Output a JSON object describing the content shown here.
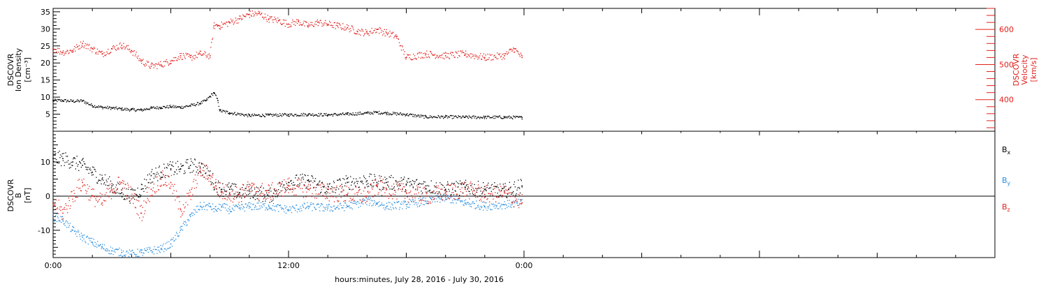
{
  "chart_data": [
    {
      "type": "scatter",
      "panel": "top",
      "title": "",
      "ylabel": [
        "DSCOVR",
        "Ion Density",
        "[cm⁻³]"
      ],
      "y2label": [
        "DSCOVR",
        "Velocity",
        "[km/s]"
      ],
      "xlim_hours": [
        0,
        48
      ],
      "ylim": [
        0,
        36
      ],
      "y2lim": [
        310,
        660
      ],
      "yticks": [
        5,
        10,
        15,
        20,
        25,
        30,
        35
      ],
      "y2ticks": [
        400,
        500,
        600
      ],
      "y2_color": "#e0201c",
      "series": [
        {
          "axis": "left",
          "color": "#000000",
          "x": [
            0.0,
            0.5,
            1.0,
            1.5,
            2.0,
            2.5,
            3.0,
            3.5,
            4.0,
            4.5,
            5.0,
            5.5,
            6.0,
            6.5,
            7.0,
            7.5,
            7.8,
            8.0,
            8.2,
            8.4,
            8.5,
            9.0,
            10.0,
            11.0,
            12.0,
            13.0,
            14.0,
            15.0,
            16.0,
            16.5,
            17.0,
            18.0,
            19.0,
            20.0,
            21.0,
            22.0,
            23.0,
            23.9
          ],
          "y": [
            9.0,
            9.0,
            8.8,
            8.9,
            7.5,
            7.0,
            6.8,
            6.5,
            6.3,
            6.2,
            6.8,
            7.0,
            7.2,
            7.0,
            7.5,
            8.2,
            9.0,
            10.2,
            11.3,
            9.0,
            6.0,
            5.4,
            4.6,
            4.7,
            4.8,
            4.9,
            4.8,
            5.0,
            5.3,
            5.5,
            5.3,
            4.9,
            4.2,
            4.2,
            4.1,
            4.1,
            4.1,
            4.0
          ]
        },
        {
          "axis": "right",
          "color": "#e0201c",
          "x": [
            0.0,
            0.5,
            1.0,
            1.5,
            2.0,
            2.5,
            3.0,
            3.5,
            4.0,
            4.5,
            5.0,
            5.5,
            6.0,
            6.5,
            7.0,
            7.5,
            8.0,
            8.2,
            8.4,
            8.5,
            9.0,
            9.5,
            10.0,
            10.5,
            11.0,
            11.5,
            12.0,
            12.5,
            13.0,
            13.5,
            14.0,
            14.5,
            15.0,
            15.5,
            16.0,
            16.5,
            17.0,
            17.5,
            18.0,
            19.0,
            20.0,
            21.0,
            22.0,
            23.0,
            23.5,
            23.9
          ],
          "y": [
            545,
            535,
            540,
            560,
            545,
            530,
            545,
            555,
            540,
            510,
            495,
            500,
            510,
            525,
            520,
            530,
            525,
            610,
            612,
            610,
            620,
            630,
            643,
            645,
            630,
            625,
            615,
            622,
            610,
            620,
            615,
            610,
            605,
            595,
            590,
            600,
            590,
            580,
            520,
            530,
            525,
            530,
            520,
            525,
            545,
            520
          ]
        }
      ]
    },
    {
      "type": "scatter",
      "panel": "bottom",
      "title": "",
      "ylabel": [
        "DSCOVR",
        "B",
        "[nT]"
      ],
      "xlim_hours": [
        0,
        48
      ],
      "ylim": [
        -18,
        19
      ],
      "yticks": [
        -10,
        0,
        10
      ],
      "zero_line": true,
      "series": [
        {
          "name": "Bₓ",
          "color": "#000000",
          "x": [
            0.0,
            0.5,
            1.0,
            1.5,
            2.0,
            2.5,
            3.0,
            3.5,
            4.0,
            4.5,
            5.0,
            5.5,
            6.0,
            6.5,
            7.0,
            7.5,
            8.0,
            8.3,
            8.6,
            9.0,
            9.5,
            10.0,
            11.0,
            12.0,
            13.0,
            14.0,
            15.0,
            16.0,
            16.5,
            17.0,
            18.0,
            19.0,
            20.0,
            21.0,
            22.0,
            23.0,
            23.9
          ],
          "y": [
            11.0,
            11.0,
            10.0,
            9.0,
            7.0,
            5.0,
            3.0,
            1.0,
            0.0,
            2.0,
            6.0,
            7.0,
            8.0,
            8.0,
            9.0,
            8.5,
            6.0,
            3.0,
            2.0,
            2.0,
            1.0,
            1.5,
            0.0,
            4.0,
            4.5,
            2.0,
            4.0,
            4.5,
            4.0,
            4.0,
            3.5,
            3.0,
            2.0,
            2.5,
            2.0,
            1.5,
            3.0
          ]
        },
        {
          "name": "Bᵧ",
          "color": "#2a8ddd",
          "x": [
            0.0,
            0.5,
            1.0,
            1.5,
            2.0,
            2.5,
            3.0,
            3.5,
            4.0,
            4.5,
            5.0,
            5.5,
            6.0,
            6.5,
            7.0,
            7.5,
            8.0,
            8.3,
            8.6,
            9.0,
            9.5,
            10.0,
            11.0,
            12.0,
            13.0,
            14.0,
            15.0,
            16.0,
            16.5,
            17.0,
            18.0,
            19.0,
            20.0,
            21.0,
            22.0,
            23.0,
            23.9
          ],
          "y": [
            -6.0,
            -7.0,
            -10.0,
            -12.0,
            -13.5,
            -15.0,
            -16.0,
            -16.5,
            -17.0,
            -16.5,
            -16.0,
            -15.5,
            -14.0,
            -10.0,
            -6.0,
            -3.0,
            -3.0,
            -4.0,
            -3.0,
            -4.0,
            -3.5,
            -3.0,
            -3.0,
            -4.0,
            -3.0,
            -3.5,
            -3.0,
            -1.5,
            -2.0,
            -3.0,
            -2.5,
            -1.5,
            -0.5,
            -2.0,
            -3.0,
            -2.5,
            -2.0
          ]
        },
        {
          "name": "B_z",
          "color": "#e0201c",
          "x": [
            0.0,
            0.5,
            1.0,
            1.5,
            2.0,
            2.5,
            3.0,
            3.5,
            4.0,
            4.5,
            5.0,
            5.5,
            6.0,
            6.5,
            7.0,
            7.5,
            8.0,
            8.3,
            8.6,
            9.0,
            9.5,
            10.0,
            11.0,
            12.0,
            13.0,
            14.0,
            15.0,
            16.0,
            16.5,
            17.0,
            18.0,
            19.0,
            20.0,
            21.0,
            22.0,
            23.0,
            23.9
          ],
          "y": [
            -2.0,
            -5.0,
            0.0,
            4.0,
            0.0,
            -2.0,
            2.0,
            4.0,
            0.0,
            -5.0,
            2.0,
            5.0,
            4.0,
            -4.0,
            0.0,
            8.0,
            6.0,
            3.0,
            1.0,
            1.0,
            0.5,
            2.0,
            1.0,
            3.0,
            2.0,
            1.0,
            0.5,
            0.0,
            3.0,
            2.0,
            1.0,
            0.0,
            1.0,
            2.0,
            0.5,
            1.0,
            -2.0
          ]
        }
      ]
    }
  ],
  "xaxis": {
    "xlabel": "hours:minutes, July 28, 2016 - July 30, 2016",
    "tick_labels": [
      {
        "hour": 0,
        "label": "0:00"
      },
      {
        "hour": 12,
        "label": "12:00"
      },
      {
        "hour": 24,
        "label": "0:00"
      }
    ]
  },
  "legend": [
    {
      "label": "B",
      "sub": "x",
      "color": "#000000"
    },
    {
      "label": "B",
      "sub": "y",
      "color": "#2a8ddd"
    },
    {
      "label": "B",
      "sub": "z",
      "color": "#e0201c"
    }
  ],
  "top_labels": {
    "left": [
      "DSCOVR",
      "Ion Density",
      "[cm⁻³]"
    ],
    "right": [
      "DSCOVR",
      "Velocity",
      "[km/s]"
    ]
  },
  "bottom_labels": {
    "left": [
      "DSCOVR",
      "B",
      "[nT]"
    ]
  }
}
